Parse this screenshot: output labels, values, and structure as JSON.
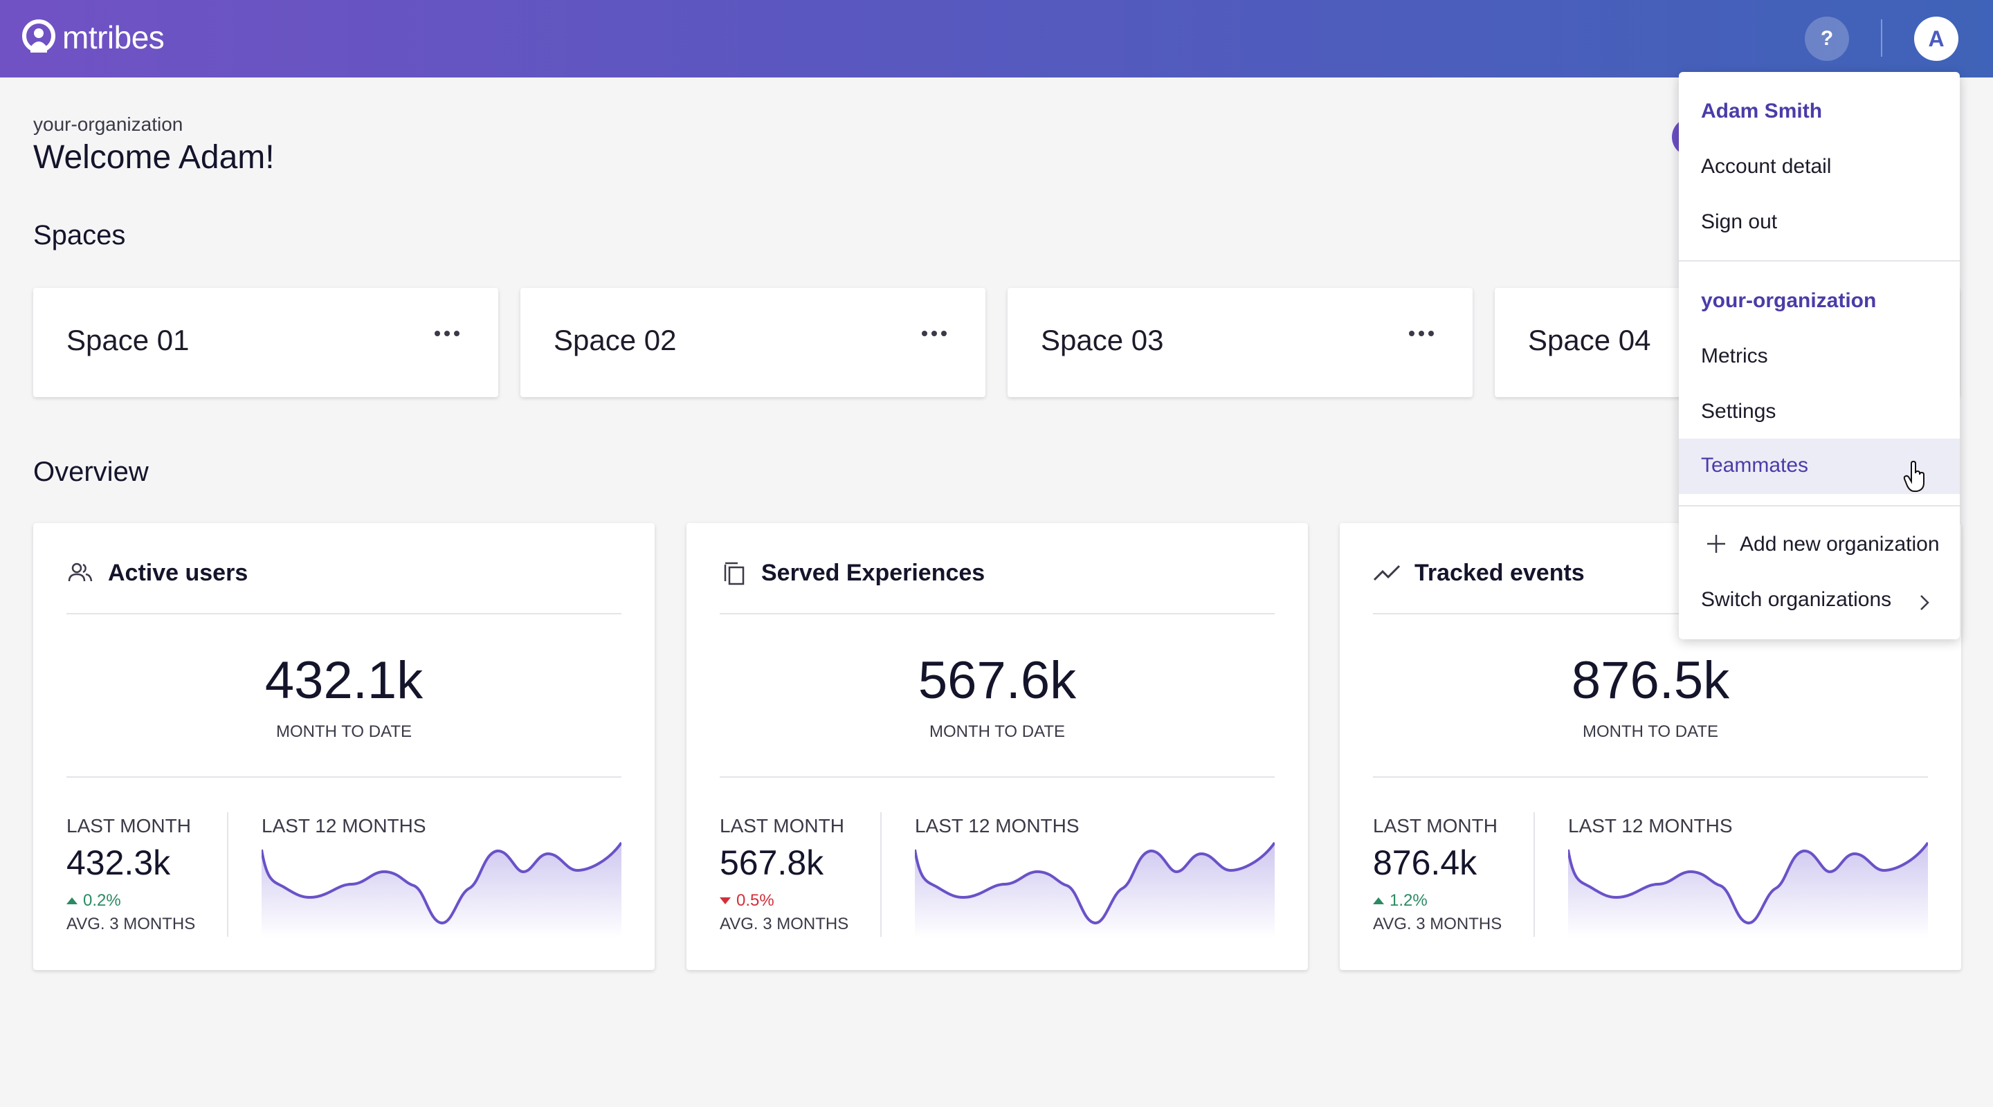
{
  "header": {
    "brand": "mtribes",
    "help_label": "?",
    "avatar_initial": "A"
  },
  "welcome": {
    "org": "your-organization",
    "greeting": "Welcome Adam!"
  },
  "spaces": {
    "title": "Spaces",
    "items": [
      {
        "name": "Space 01"
      },
      {
        "name": "Space 02"
      },
      {
        "name": "Space 03"
      },
      {
        "name": "Space 04"
      }
    ]
  },
  "overview": {
    "title": "Overview",
    "cards": [
      {
        "icon": "users-icon",
        "title": "Active users",
        "value": "432.1k",
        "sub": "MONTH TO DATE",
        "last_month_label": "LAST MONTH",
        "last_month_value": "432.3k",
        "change": "0.2%",
        "direction": "up",
        "avg_label": "AVG. 3 MONTHS",
        "last12_label": "LAST 12 MONTHS"
      },
      {
        "icon": "copy-icon",
        "title": "Served Experiences",
        "value": "567.6k",
        "sub": "MONTH TO DATE",
        "last_month_label": "LAST MONTH",
        "last_month_value": "567.8k",
        "change": "0.5%",
        "direction": "down",
        "avg_label": "AVG. 3 MONTHS",
        "last12_label": "LAST 12 MONTHS"
      },
      {
        "icon": "trending-icon",
        "title": "Tracked events",
        "value": "876.5k",
        "sub": "MONTH TO DATE",
        "last_month_label": "LAST MONTH",
        "last_month_value": "876.4k",
        "change": "1.2%",
        "direction": "up",
        "avg_label": "AVG. 3 MONTHS",
        "last12_label": "LAST 12 MONTHS"
      }
    ]
  },
  "dropdown": {
    "user_name": "Adam Smith",
    "account_detail": "Account detail",
    "sign_out": "Sign out",
    "org_name": "your-organization",
    "metrics": "Metrics",
    "settings": "Settings",
    "teammates": "Teammates",
    "add_org": "Add new organization",
    "switch_org": "Switch organizations"
  },
  "colors": {
    "header_start": "#7152c4",
    "header_end": "#3f63b8",
    "accent": "#4a3ca8",
    "spark_line": "#6a52c8",
    "positive": "#2b8a63",
    "negative": "#d32f3a"
  }
}
